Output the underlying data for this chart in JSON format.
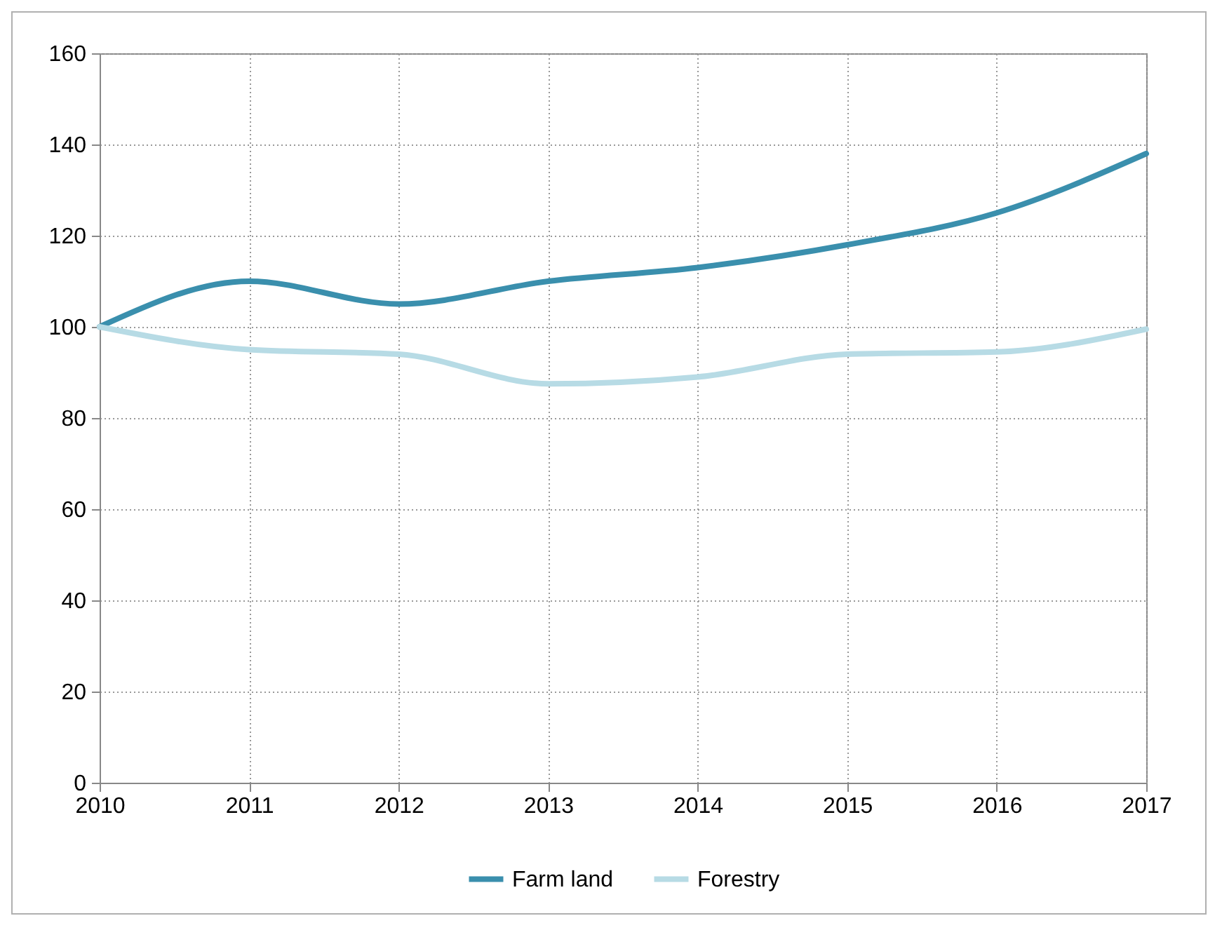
{
  "chart_data": {
    "type": "line",
    "x": [
      2010,
      2011,
      2012,
      2013,
      2014,
      2015,
      2016,
      2017
    ],
    "series": [
      {
        "name": "Farm land",
        "color": "#3a8fad",
        "values": [
          100,
          110,
          105,
          110,
          113,
          118,
          125,
          138
        ]
      },
      {
        "name": "Forestry",
        "color": "#b7dbe5",
        "values": [
          100,
          95,
          94,
          87.5,
          89,
          94,
          94.5,
          99.5
        ]
      }
    ],
    "xlim": [
      2010,
      2017
    ],
    "xticks": [
      2010,
      2011,
      2012,
      2013,
      2014,
      2015,
      2016,
      2017
    ],
    "ylim": [
      0,
      160
    ],
    "yticks": [
      0,
      20,
      40,
      60,
      80,
      100,
      120,
      140,
      160
    ],
    "grid": true,
    "legend": "bottom",
    "marker": "none",
    "line_style": "solid"
  }
}
